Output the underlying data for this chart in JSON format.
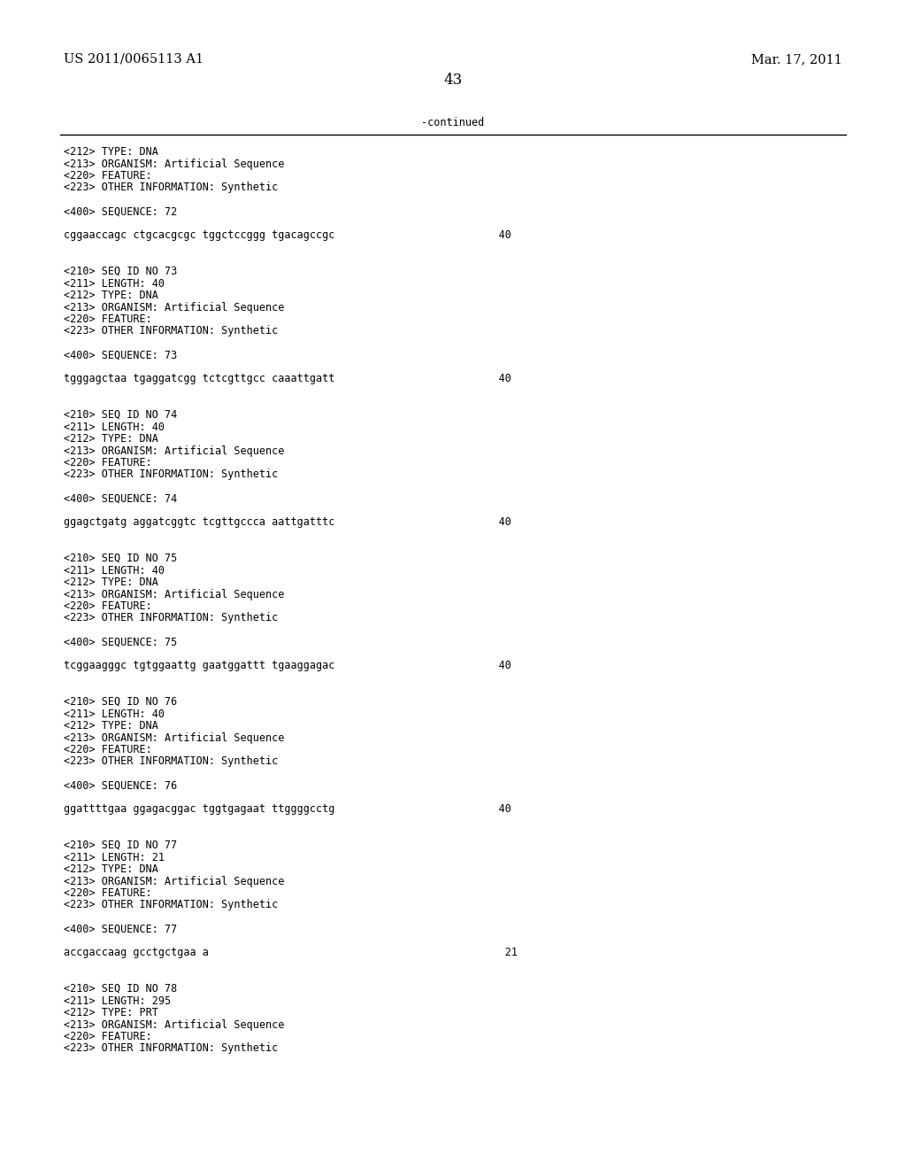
{
  "header_left": "US 2011/0065113 A1",
  "header_right": "Mar. 17, 2011",
  "page_number": "43",
  "continued_text": "-continued",
  "background_color": "#ffffff",
  "text_color": "#000000",
  "font_size_header": 10.5,
  "font_size_body": 8.5,
  "font_size_page": 12,
  "lines": [
    "<212> TYPE: DNA",
    "<213> ORGANISM: Artificial Sequence",
    "<220> FEATURE:",
    "<223> OTHER INFORMATION: Synthetic",
    "",
    "<400> SEQUENCE: 72",
    "",
    "cggaaccagc ctgcacgcgc tggctccggg tgacagccgc                          40",
    "",
    "",
    "<210> SEQ ID NO 73",
    "<211> LENGTH: 40",
    "<212> TYPE: DNA",
    "<213> ORGANISM: Artificial Sequence",
    "<220> FEATURE:",
    "<223> OTHER INFORMATION: Synthetic",
    "",
    "<400> SEQUENCE: 73",
    "",
    "tgggagctaa tgaggatcgg tctcgttgcc caaattgatt                          40",
    "",
    "",
    "<210> SEQ ID NO 74",
    "<211> LENGTH: 40",
    "<212> TYPE: DNA",
    "<213> ORGANISM: Artificial Sequence",
    "<220> FEATURE:",
    "<223> OTHER INFORMATION: Synthetic",
    "",
    "<400> SEQUENCE: 74",
    "",
    "ggagctgatg aggatcggtc tcgttgccca aattgatttc                          40",
    "",
    "",
    "<210> SEQ ID NO 75",
    "<211> LENGTH: 40",
    "<212> TYPE: DNA",
    "<213> ORGANISM: Artificial Sequence",
    "<220> FEATURE:",
    "<223> OTHER INFORMATION: Synthetic",
    "",
    "<400> SEQUENCE: 75",
    "",
    "tcggaagggc tgtggaattg gaatggattt tgaaggagac                          40",
    "",
    "",
    "<210> SEQ ID NO 76",
    "<211> LENGTH: 40",
    "<212> TYPE: DNA",
    "<213> ORGANISM: Artificial Sequence",
    "<220> FEATURE:",
    "<223> OTHER INFORMATION: Synthetic",
    "",
    "<400> SEQUENCE: 76",
    "",
    "ggattttgaa ggagacggac tggtgagaat ttggggcctg                          40",
    "",
    "",
    "<210> SEQ ID NO 77",
    "<211> LENGTH: 21",
    "<212> TYPE: DNA",
    "<213> ORGANISM: Artificial Sequence",
    "<220> FEATURE:",
    "<223> OTHER INFORMATION: Synthetic",
    "",
    "<400> SEQUENCE: 77",
    "",
    "accgaccaag gcctgctgaa a                                               21",
    "",
    "",
    "<210> SEQ ID NO 78",
    "<211> LENGTH: 295",
    "<212> TYPE: PRT",
    "<213> ORGANISM: Artificial Sequence",
    "<220> FEATURE:",
    "<223> OTHER INFORMATION: Synthetic"
  ]
}
